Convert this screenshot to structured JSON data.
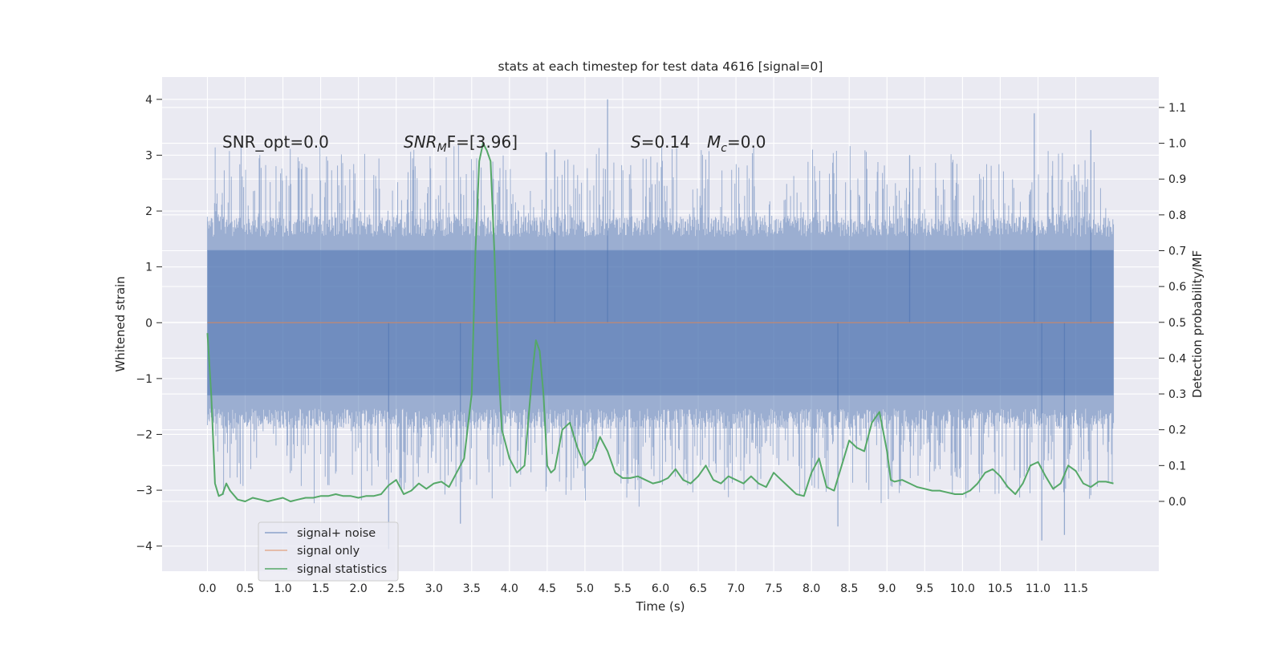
{
  "chart_data": {
    "type": "line",
    "title": "stats at each timestep for test data 4616 [signal=0]",
    "xlabel": "Time (s)",
    "ylabel_left": "Whitened strain",
    "ylabel_right": "Detection probability/MF",
    "xlim": [
      -0.6,
      12.6
    ],
    "ylim_left": [
      -4.45,
      4.4
    ],
    "ylim_right": [
      -0.195,
      1.185
    ],
    "grid": true,
    "legend_position": "lower-left",
    "x_ticks": [
      "0.0",
      "0.5",
      "1.0",
      "1.5",
      "2.0",
      "2.5",
      "3.0",
      "3.5",
      "4.0",
      "4.5",
      "5.0",
      "5.5",
      "6.0",
      "6.5",
      "7.0",
      "7.5",
      "8.0",
      "8.5",
      "9.0",
      "9.5",
      "10.0",
      "10.5",
      "11.0",
      "11.5"
    ],
    "y_ticks_left": [
      "4",
      "3",
      "2",
      "1",
      "0",
      "−1",
      "−2",
      "−3",
      "−4"
    ],
    "y_ticks_right": [
      "1.1",
      "1.0",
      "0.9",
      "0.8",
      "0.7",
      "0.6",
      "0.5",
      "0.4",
      "0.3",
      "0.2",
      "0.1",
      "0.0"
    ],
    "annotations": {
      "snr_opt": "SNR_opt=0.0",
      "snr_mf_prefix": "SNR",
      "snr_mf_sub": "M",
      "snr_mf_suffix": "F=[3.96]",
      "s_var": "S",
      "s_value": "=0.14",
      "mc_var": "M",
      "mc_sub": "c",
      "mc_value": "=0.0"
    },
    "series": [
      {
        "name": "signal+ noise",
        "color": "#4c72b0",
        "kind": "noise",
        "x_range": [
          0.0,
          12.0
        ],
        "core_band": [
          -1.3,
          1.3
        ],
        "envelope_upper": [
          1.9,
          3.2
        ],
        "envelope_lower": [
          -1.9,
          -3.3
        ],
        "spikes": [
          [
            5.3,
            4.0
          ],
          [
            10.95,
            3.75
          ],
          [
            11.7,
            3.45
          ],
          [
            9.3,
            3.0
          ],
          [
            4.6,
            3.1
          ],
          [
            2.4,
            -4.05
          ],
          [
            11.05,
            -3.9
          ],
          [
            11.35,
            -3.8
          ],
          [
            3.35,
            -3.6
          ],
          [
            8.35,
            -3.65
          ]
        ]
      },
      {
        "name": "signal only",
        "color": "#dd8452",
        "kind": "flat",
        "x": [
          0.0,
          12.0
        ],
        "y": [
          0.0,
          0.0
        ]
      },
      {
        "name": "signal statistics",
        "color": "#55a868",
        "kind": "stat",
        "x": [
          0.0,
          0.05,
          0.1,
          0.15,
          0.2,
          0.25,
          0.3,
          0.4,
          0.5,
          0.6,
          0.7,
          0.8,
          0.9,
          1.0,
          1.1,
          1.2,
          1.3,
          1.4,
          1.5,
          1.6,
          1.7,
          1.8,
          1.9,
          2.0,
          2.1,
          2.2,
          2.3,
          2.4,
          2.5,
          2.6,
          2.7,
          2.8,
          2.9,
          3.0,
          3.1,
          3.2,
          3.3,
          3.4,
          3.5,
          3.55,
          3.6,
          3.65,
          3.7,
          3.75,
          3.8,
          3.85,
          3.9,
          4.0,
          4.1,
          4.2,
          4.3,
          4.35,
          4.4,
          4.45,
          4.5,
          4.55,
          4.6,
          4.7,
          4.8,
          4.9,
          5.0,
          5.1,
          5.2,
          5.3,
          5.4,
          5.5,
          5.6,
          5.7,
          5.8,
          5.9,
          6.0,
          6.1,
          6.2,
          6.3,
          6.4,
          6.5,
          6.6,
          6.7,
          6.8,
          6.9,
          7.0,
          7.1,
          7.2,
          7.3,
          7.4,
          7.5,
          7.6,
          7.7,
          7.8,
          7.9,
          8.0,
          8.1,
          8.2,
          8.3,
          8.4,
          8.5,
          8.6,
          8.7,
          8.8,
          8.9,
          9.0,
          9.05,
          9.1,
          9.2,
          9.3,
          9.4,
          9.5,
          9.6,
          9.7,
          9.8,
          9.9,
          10.0,
          10.1,
          10.2,
          10.3,
          10.4,
          10.5,
          10.6,
          10.7,
          10.8,
          10.9,
          11.0,
          11.1,
          11.2,
          11.3,
          11.4,
          11.5,
          11.6,
          11.7,
          11.8,
          11.9,
          12.0
        ],
        "y": [
          0.47,
          0.3,
          0.05,
          0.015,
          0.02,
          0.05,
          0.03,
          0.005,
          0.0,
          0.01,
          0.005,
          0.0,
          0.005,
          0.01,
          0.0,
          0.005,
          0.01,
          0.01,
          0.015,
          0.015,
          0.02,
          0.015,
          0.015,
          0.01,
          0.015,
          0.015,
          0.02,
          0.045,
          0.06,
          0.02,
          0.03,
          0.05,
          0.035,
          0.05,
          0.055,
          0.04,
          0.08,
          0.12,
          0.3,
          0.7,
          0.95,
          1.0,
          0.98,
          0.95,
          0.7,
          0.4,
          0.2,
          0.12,
          0.08,
          0.1,
          0.35,
          0.45,
          0.42,
          0.3,
          0.1,
          0.08,
          0.09,
          0.2,
          0.22,
          0.15,
          0.1,
          0.12,
          0.18,
          0.14,
          0.08,
          0.065,
          0.065,
          0.07,
          0.06,
          0.05,
          0.055,
          0.065,
          0.09,
          0.06,
          0.05,
          0.07,
          0.1,
          0.06,
          0.05,
          0.07,
          0.06,
          0.05,
          0.07,
          0.05,
          0.04,
          0.08,
          0.06,
          0.04,
          0.02,
          0.015,
          0.08,
          0.12,
          0.04,
          0.03,
          0.1,
          0.17,
          0.15,
          0.14,
          0.22,
          0.25,
          0.14,
          0.06,
          0.055,
          0.06,
          0.05,
          0.04,
          0.035,
          0.03,
          0.03,
          0.025,
          0.02,
          0.02,
          0.03,
          0.05,
          0.08,
          0.09,
          0.07,
          0.04,
          0.02,
          0.05,
          0.1,
          0.11,
          0.07,
          0.035,
          0.05,
          0.1,
          0.085,
          0.05,
          0.04,
          0.055,
          0.055,
          0.05
        ]
      }
    ]
  }
}
